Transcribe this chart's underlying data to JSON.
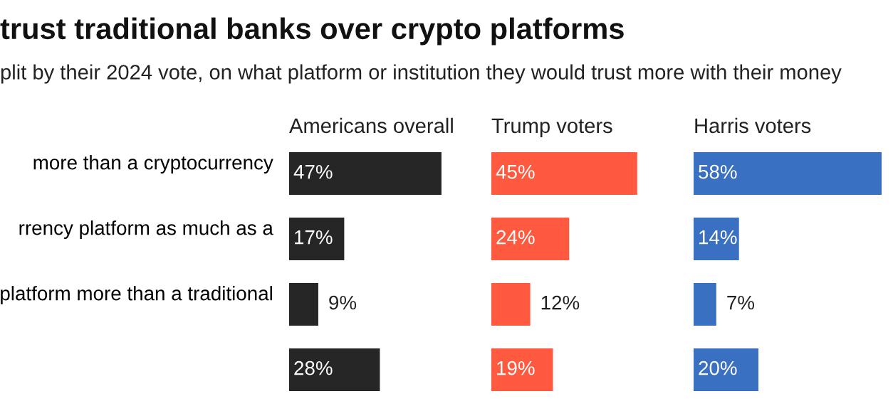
{
  "chart_data": [
    {
      "type": "bar",
      "orientation": "horizontal",
      "title": "Americans overall",
      "annotations": [
        "trust traditional banks over crypto platforms",
        "plit by their 2024 vote, on what platform or institution they would trust more with their money"
      ],
      "categories": [
        "more than a cryptocurrency",
        "rrency platform as much as a",
        "platform more than a traditional",
        null
      ],
      "values": [
        47,
        17,
        9,
        28
      ],
      "value_labels": [
        "47%",
        "17%",
        "9%",
        "28%"
      ],
      "color": "#262626",
      "tick_labels": "y"
    },
    {
      "type": "bar",
      "orientation": "horizontal",
      "title": "Trump voters",
      "categories": [
        null,
        null,
        null,
        null
      ],
      "values": [
        45,
        24,
        12,
        19
      ],
      "value_labels": [
        "45%",
        "24%",
        "12%",
        "19%"
      ],
      "color": "#ff5a3f",
      "tick_labels": false
    },
    {
      "type": "bar",
      "orientation": "horizontal",
      "title": "Harris voters",
      "categories": [
        null,
        null,
        null,
        null
      ],
      "values": [
        58,
        14,
        7,
        20
      ],
      "value_labels": [
        "58%",
        "14%",
        "7%",
        "20%"
      ],
      "color": "#3a70c2",
      "tick_labels": false
    }
  ]
}
